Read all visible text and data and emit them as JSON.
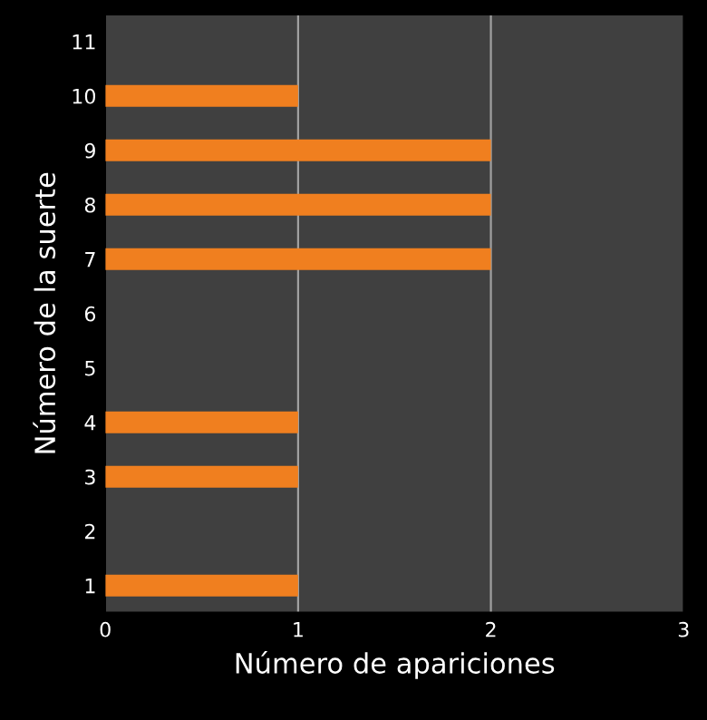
{
  "chart_data": {
    "type": "bar",
    "orientation": "horizontal",
    "xlabel": "Número de apariciones",
    "ylabel": "Número de la suerte",
    "categories": [
      "11",
      "10",
      "9",
      "8",
      "7",
      "6",
      "5",
      "4",
      "3",
      "2",
      "1"
    ],
    "values": [
      0,
      1,
      2,
      2,
      2,
      0,
      0,
      1,
      1,
      0,
      1
    ],
    "color": "#f07f1f",
    "xlim": [
      0,
      3
    ],
    "xticks": [
      0,
      1,
      2,
      3
    ],
    "grid": "x",
    "legend": false
  }
}
